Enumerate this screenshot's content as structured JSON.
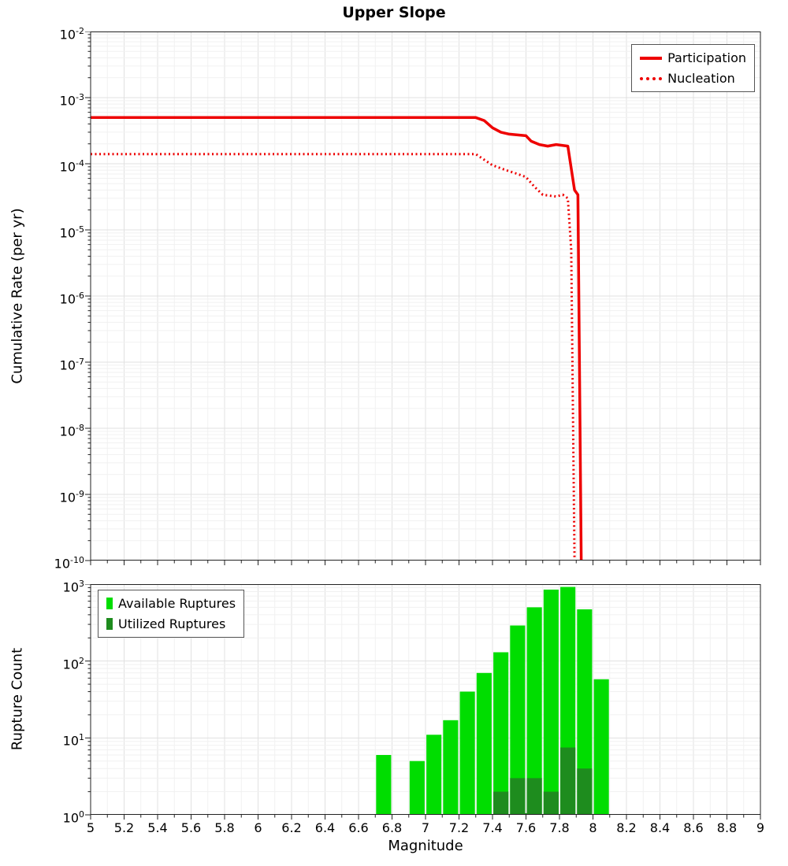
{
  "chart_data": [
    {
      "type": "line",
      "title": "Upper Slope",
      "ylabel": "Cumulative Rate (per yr)",
      "xlabel": "",
      "xlim": [
        5,
        9
      ],
      "x_major_tick_step": 0.2,
      "x_minor_tick_step": 0.1,
      "ylog_exponent_range": [
        -10,
        -2
      ],
      "grid": true,
      "legend_position": "top-right",
      "series": [
        {
          "name": "Participation",
          "color": "#ee0000",
          "line_style": "solid",
          "points": [
            [
              5.0,
              0.0005
            ],
            [
              7.3,
              0.0005
            ],
            [
              7.35,
              0.00045
            ],
            [
              7.4,
              0.00035
            ],
            [
              7.45,
              0.0003
            ],
            [
              7.5,
              0.00028
            ],
            [
              7.6,
              0.000265
            ],
            [
              7.63,
              0.00022
            ],
            [
              7.68,
              0.000195
            ],
            [
              7.73,
              0.000185
            ],
            [
              7.78,
              0.000195
            ],
            [
              7.85,
              0.000185
            ],
            [
              7.89,
              4e-05
            ],
            [
              7.91,
              3.4e-05
            ],
            [
              7.93,
              1e-10
            ]
          ]
        },
        {
          "name": "Nucleation",
          "color": "#ee0000",
          "line_style": "dotted",
          "points": [
            [
              5.0,
              0.00014
            ],
            [
              7.3,
              0.00014
            ],
            [
              7.4,
              9.5e-05
            ],
            [
              7.48,
              8e-05
            ],
            [
              7.55,
              7e-05
            ],
            [
              7.6,
              6.3e-05
            ],
            [
              7.65,
              4.5e-05
            ],
            [
              7.7,
              3.4e-05
            ],
            [
              7.78,
              3.2e-05
            ],
            [
              7.82,
              3.4e-05
            ],
            [
              7.85,
              3e-05
            ],
            [
              7.87,
              5e-06
            ],
            [
              7.89,
              1e-10
            ]
          ]
        }
      ]
    },
    {
      "type": "bar",
      "title": "",
      "ylabel": "Rupture Count",
      "xlabel": "Magnitude",
      "xlim": [
        5,
        9
      ],
      "x_major_tick_step": 0.2,
      "x_minor_tick_step": 0.1,
      "ylog_exponent_range": [
        0,
        3
      ],
      "bar_width": 0.1,
      "grid": true,
      "legend_position": "top-left",
      "x_tick_labels": [
        "5",
        "5.2",
        "5.4",
        "5.6",
        "5.8",
        "6",
        "6.2",
        "6.4",
        "6.6",
        "6.8",
        "7",
        "7.2",
        "7.4",
        "7.6",
        "7.8",
        "8",
        "8.2",
        "8.4",
        "8.6",
        "8.8",
        "9"
      ],
      "series": [
        {
          "name": "Available Ruptures",
          "color": "#00dd00",
          "bars": [
            [
              6.75,
              6
            ],
            [
              6.95,
              5
            ],
            [
              7.05,
              11
            ],
            [
              7.15,
              17
            ],
            [
              7.25,
              40
            ],
            [
              7.35,
              70
            ],
            [
              7.45,
              130
            ],
            [
              7.55,
              290
            ],
            [
              7.65,
              500
            ],
            [
              7.75,
              850
            ],
            [
              7.85,
              920
            ],
            [
              7.95,
              470
            ],
            [
              8.05,
              58
            ]
          ]
        },
        {
          "name": "Utilized Ruptures",
          "color": "#1e8c1e",
          "bars": [
            [
              7.45,
              2
            ],
            [
              7.55,
              3
            ],
            [
              7.6,
              1.05
            ],
            [
              7.65,
              3
            ],
            [
              7.75,
              2
            ],
            [
              7.85,
              7.5
            ],
            [
              7.95,
              4
            ]
          ]
        }
      ]
    }
  ]
}
